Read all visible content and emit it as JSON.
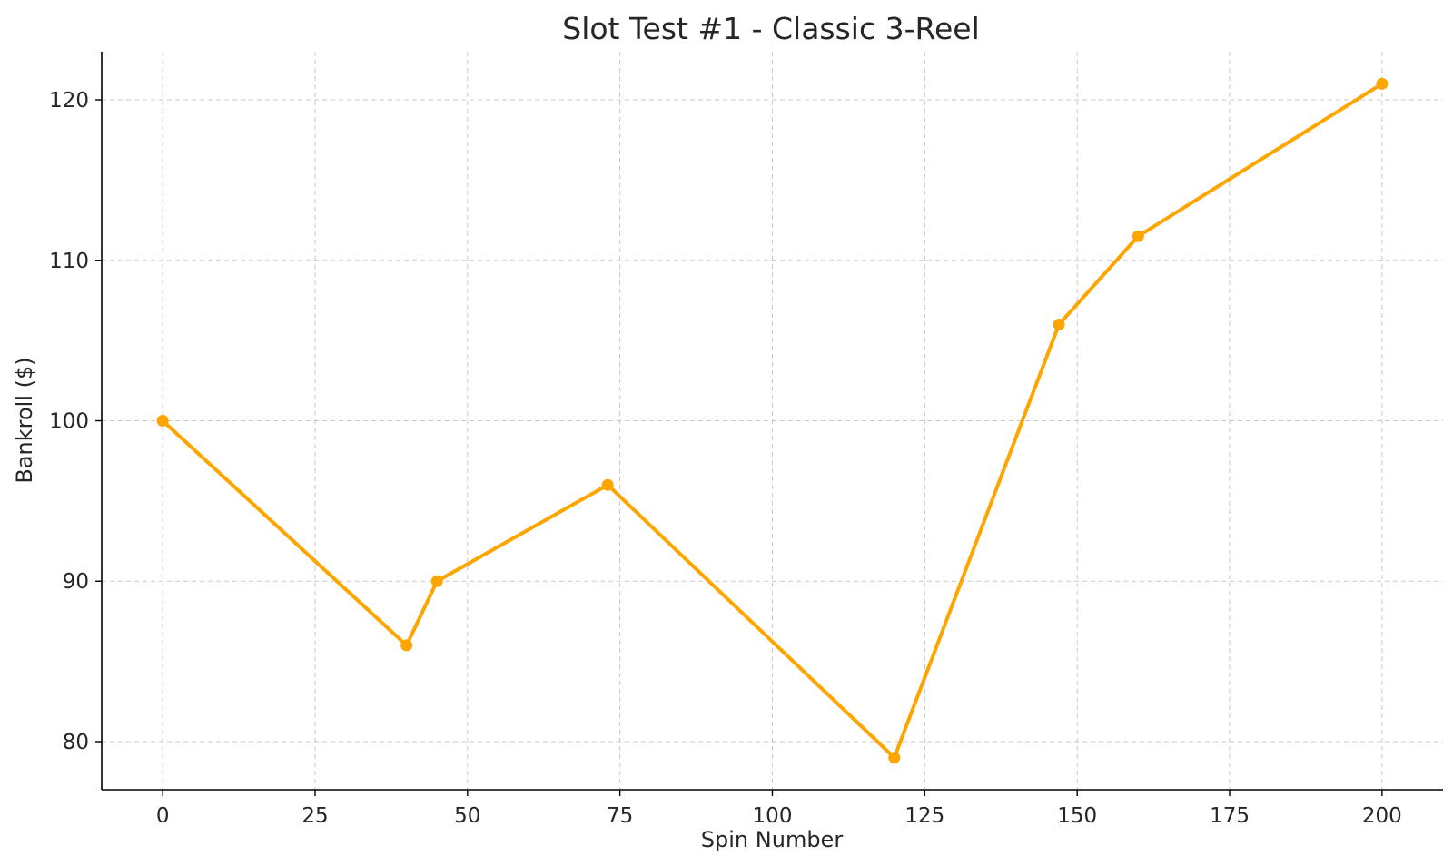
{
  "chart_data": {
    "type": "line",
    "title": "Slot Test #1 - Classic 3-Reel",
    "xlabel": "Spin Number",
    "ylabel": "Bankroll ($)",
    "xlim": [
      -10,
      210
    ],
    "ylim": [
      77,
      123
    ],
    "xticks": [
      0,
      25,
      50,
      75,
      100,
      125,
      150,
      175,
      200
    ],
    "yticks": [
      80,
      90,
      100,
      110,
      120
    ],
    "grid": true,
    "series": [
      {
        "color": "#FFA500",
        "x": [
          0,
          40,
          45,
          73,
          120,
          147,
          160,
          200
        ],
        "y": [
          100,
          86,
          90,
          96,
          79,
          106,
          111.5,
          121
        ]
      }
    ]
  }
}
